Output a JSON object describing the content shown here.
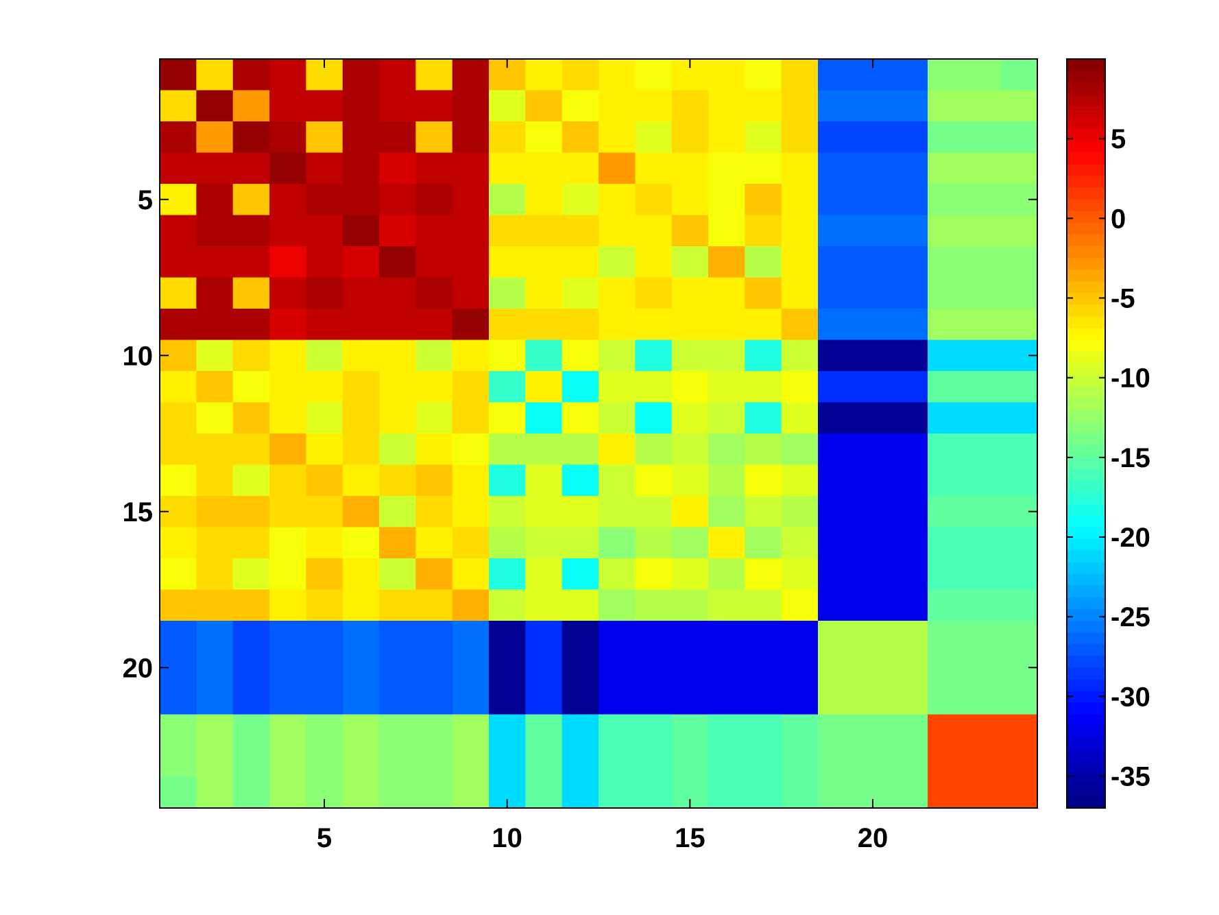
{
  "chart_data": {
    "type": "heatmap",
    "title": "",
    "xlabel": "",
    "ylabel": "",
    "colormap": "jet",
    "rows": 24,
    "cols": 24,
    "x_ticks": [
      5,
      10,
      15,
      20
    ],
    "y_ticks": [
      5,
      10,
      15,
      20
    ],
    "x_tick_labels": [
      "5",
      "10",
      "15",
      "20"
    ],
    "y_tick_labels": [
      "5",
      "10",
      "15",
      "20"
    ],
    "clim": [
      -37,
      10
    ],
    "colorbar_ticks": [
      5,
      0,
      -5,
      -10,
      -15,
      -20,
      -25,
      -30,
      -35
    ],
    "colorbar_tick_labels": [
      "5",
      "0",
      "-5",
      "-10",
      "-15",
      "-20",
      "-25",
      "-30",
      "-35"
    ],
    "values": [
      [
        9,
        -6,
        8,
        7,
        -6,
        8,
        7,
        -6,
        8,
        -5,
        -7,
        -6,
        -7,
        -8,
        -7,
        -7,
        -8,
        -6,
        -27,
        -27,
        -27,
        -13,
        -13,
        -14
      ],
      [
        -6,
        9,
        -3,
        7,
        7,
        8,
        7,
        7,
        8,
        -9,
        -5,
        -8,
        -7,
        -7,
        -6,
        -7,
        -7,
        -6,
        -26,
        -26,
        -26,
        -12,
        -12,
        -12
      ],
      [
        8,
        -3,
        9,
        8,
        -5,
        8,
        8,
        -5,
        8,
        -6,
        -8,
        -5,
        -7,
        -9,
        -6,
        -7,
        -9,
        -6,
        -28,
        -28,
        -28,
        -14,
        -14,
        -14
      ],
      [
        7,
        7,
        7,
        9,
        7,
        8,
        6,
        7,
        7,
        -7,
        -7,
        -7,
        -3,
        -7,
        -7,
        -8,
        -8,
        -7,
        -27,
        -27,
        -27,
        -12,
        -12,
        -12
      ],
      [
        -7,
        8,
        -5,
        7,
        8,
        8,
        7,
        8,
        7,
        -11,
        -7,
        -9,
        -7,
        -6,
        -7,
        -8,
        -5,
        -7,
        -27,
        -27,
        -27,
        -13,
        -13,
        -13
      ],
      [
        7,
        8,
        8,
        7,
        7,
        9,
        6,
        7,
        7,
        -6,
        -6,
        -6,
        -7,
        -7,
        -5,
        -8,
        -6,
        -7,
        -26,
        -26,
        -26,
        -12,
        -12,
        -12
      ],
      [
        7,
        7,
        7,
        5,
        7,
        6,
        9,
        7,
        7,
        -7,
        -7,
        -7,
        -10,
        -7,
        -10,
        -4,
        -11,
        -7,
        -27,
        -27,
        -27,
        -13,
        -13,
        -13
      ],
      [
        -6,
        8,
        -5,
        7,
        8,
        7,
        7,
        8,
        7,
        -11,
        -7,
        -9,
        -7,
        -6,
        -7,
        -7,
        -5,
        -7,
        -27,
        -27,
        -27,
        -13,
        -13,
        -13
      ],
      [
        8,
        8,
        8,
        6,
        7,
        7,
        7,
        7,
        9,
        -6,
        -6,
        -6,
        -7,
        -7,
        -7,
        -7,
        -7,
        -5,
        -26,
        -26,
        -26,
        -12,
        -12,
        -12
      ],
      [
        -5,
        -9,
        -6,
        -7,
        -10,
        -7,
        -7,
        -10,
        -7,
        -8,
        -17,
        -8,
        -10,
        -18,
        -10,
        -10,
        -18,
        -10,
        -36,
        -36,
        -36,
        -21,
        -21,
        -21
      ],
      [
        -7,
        -5,
        -8,
        -7,
        -7,
        -6,
        -7,
        -7,
        -6,
        -17,
        -7,
        -19,
        -9,
        -9,
        -8,
        -9,
        -9,
        -8,
        -29,
        -29,
        -29,
        -15,
        -15,
        -15
      ],
      [
        -6,
        -8,
        -5,
        -7,
        -9,
        -6,
        -7,
        -9,
        -6,
        -8,
        -19,
        -8,
        -10,
        -19,
        -9,
        -10,
        -18,
        -9,
        -36,
        -36,
        -36,
        -21,
        -21,
        -21
      ],
      [
        -6,
        -6,
        -6,
        -4,
        -7,
        -6,
        -10,
        -7,
        -8,
        -11,
        -11,
        -11,
        -7,
        -11,
        -10,
        -12,
        -11,
        -12,
        -32,
        -32,
        -32,
        -16,
        -16,
        -16
      ],
      [
        -8,
        -6,
        -9,
        -6,
        -5,
        -7,
        -6,
        -5,
        -7,
        -18,
        -9,
        -19,
        -10,
        -8,
        -9,
        -11,
        -8,
        -9,
        -32,
        -32,
        -32,
        -16,
        -16,
        -16
      ],
      [
        -6,
        -5,
        -5,
        -6,
        -6,
        -4,
        -10,
        -6,
        -7,
        -10,
        -9,
        -9,
        -10,
        -10,
        -7,
        -12,
        -10,
        -11,
        -32,
        -32,
        -32,
        -15,
        -15,
        -15
      ],
      [
        -7,
        -6,
        -6,
        -8,
        -7,
        -8,
        -4,
        -7,
        -6,
        -11,
        -10,
        -10,
        -13,
        -11,
        -12,
        -7,
        -12,
        -10,
        -32,
        -32,
        -32,
        -16,
        -16,
        -16
      ],
      [
        -8,
        -6,
        -9,
        -8,
        -5,
        -7,
        -10,
        -4,
        -7,
        -18,
        -9,
        -19,
        -10,
        -8,
        -9,
        -11,
        -8,
        -9,
        -32,
        -32,
        -32,
        -16,
        -16,
        -16
      ],
      [
        -5,
        -5,
        -5,
        -7,
        -6,
        -7,
        -6,
        -6,
        -4,
        -10,
        -9,
        -9,
        -12,
        -11,
        -11,
        -10,
        -10,
        -8,
        -32,
        -32,
        -32,
        -15,
        -15,
        -15
      ],
      [
        -27,
        -26,
        -28,
        -27,
        -27,
        -26,
        -27,
        -27,
        -26,
        -36,
        -29,
        -36,
        -32,
        -32,
        -32,
        -32,
        -32,
        -32,
        -11,
        -11,
        -11,
        -14,
        -14,
        -14
      ],
      [
        -27,
        -26,
        -28,
        -27,
        -27,
        -26,
        -27,
        -27,
        -26,
        -36,
        -29,
        -36,
        -32,
        -32,
        -32,
        -32,
        -32,
        -32,
        -11,
        -11,
        -11,
        -14,
        -14,
        -14
      ],
      [
        -27,
        -26,
        -28,
        -27,
        -27,
        -26,
        -27,
        -27,
        -26,
        -36,
        -29,
        -36,
        -32,
        -32,
        -32,
        -32,
        -32,
        -32,
        -11,
        -11,
        -11,
        -14,
        -14,
        -14
      ],
      [
        -13,
        -12,
        -14,
        -12,
        -13,
        -12,
        -13,
        -13,
        -12,
        -21,
        -15,
        -21,
        -16,
        -16,
        -15,
        -16,
        -16,
        -15,
        -14,
        -14,
        -14,
        1,
        1,
        1
      ],
      [
        -13,
        -12,
        -14,
        -12,
        -13,
        -12,
        -13,
        -13,
        -12,
        -21,
        -15,
        -21,
        -16,
        -16,
        -15,
        -16,
        -16,
        -15,
        -14,
        -14,
        -14,
        1,
        1,
        1
      ],
      [
        -14,
        -12,
        -14,
        -12,
        -13,
        -12,
        -13,
        -13,
        -12,
        -21,
        -15,
        -21,
        -16,
        -16,
        -15,
        -16,
        -16,
        -15,
        -14,
        -14,
        -14,
        1,
        1,
        1
      ]
    ]
  }
}
